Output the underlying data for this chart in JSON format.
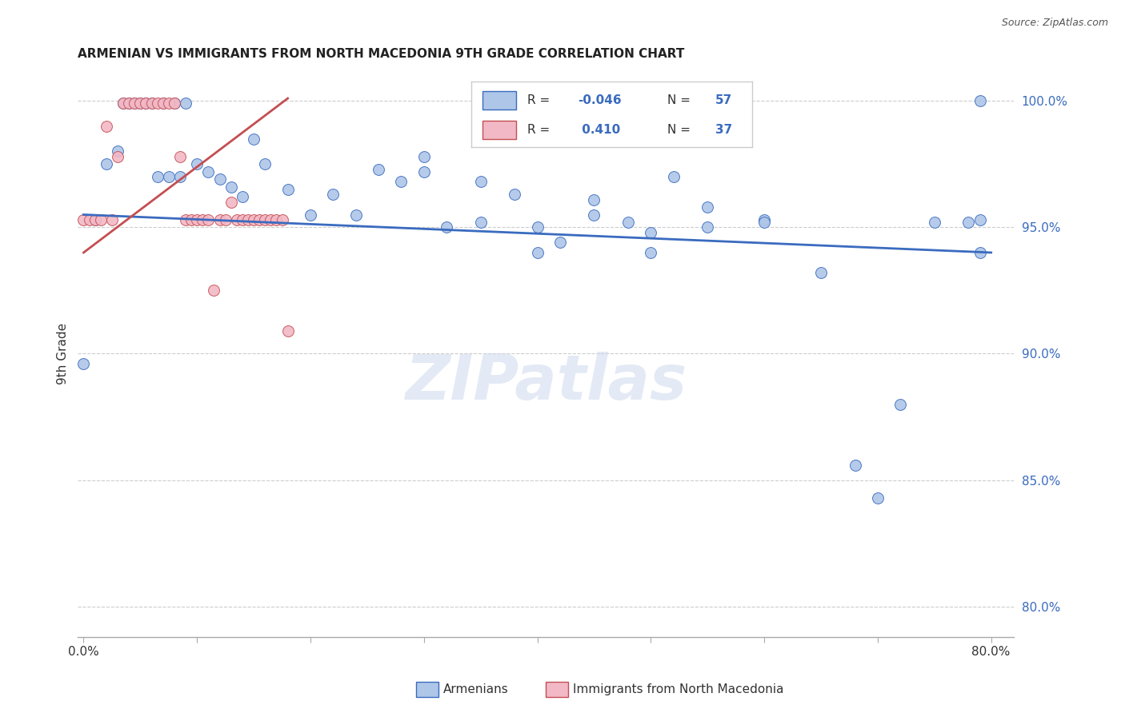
{
  "title": "ARMENIAN VS IMMIGRANTS FROM NORTH MACEDONIA 9TH GRADE CORRELATION CHART",
  "source": "Source: ZipAtlas.com",
  "ylabel": "9th Grade",
  "xlim": [
    -0.005,
    0.82
  ],
  "ylim": [
    0.788,
    1.012
  ],
  "yticks": [
    0.8,
    0.85,
    0.9,
    0.95,
    1.0
  ],
  "ytick_labels": [
    "80.0%",
    "85.0%",
    "90.0%",
    "95.0%",
    "100.0%"
  ],
  "xticks": [
    0.0,
    0.1,
    0.2,
    0.3,
    0.4,
    0.5,
    0.6,
    0.7,
    0.8
  ],
  "xtick_labels": [
    "0.0%",
    "",
    "",
    "",
    "",
    "",
    "",
    "",
    "80.0%"
  ],
  "blue_color": "#aec6e8",
  "pink_color": "#f2b8c6",
  "blue_line_color": "#3a6bbf",
  "pink_line_color": "#c44e52",
  "watermark": "ZIPatlas",
  "blue_scatter_x": [
    0.0,
    0.01,
    0.02,
    0.03,
    0.035,
    0.04,
    0.045,
    0.05,
    0.055,
    0.06,
    0.065,
    0.07,
    0.075,
    0.08,
    0.085,
    0.09,
    0.1,
    0.11,
    0.12,
    0.13,
    0.14,
    0.15,
    0.16,
    0.18,
    0.2,
    0.22,
    0.24,
    0.26,
    0.28,
    0.3,
    0.32,
    0.35,
    0.38,
    0.4,
    0.42,
    0.45,
    0.48,
    0.5,
    0.52,
    0.55,
    0.6,
    0.65,
    0.68,
    0.7,
    0.72,
    0.75,
    0.78,
    0.79,
    0.79,
    0.3,
    0.35,
    0.4,
    0.45,
    0.5,
    0.55,
    0.6,
    0.79
  ],
  "blue_scatter_y": [
    0.896,
    0.953,
    0.975,
    0.98,
    0.999,
    0.999,
    0.999,
    0.999,
    0.999,
    0.999,
    0.97,
    0.999,
    0.97,
    0.999,
    0.97,
    0.999,
    0.975,
    0.972,
    0.969,
    0.966,
    0.962,
    0.985,
    0.975,
    0.965,
    0.955,
    0.963,
    0.955,
    0.973,
    0.968,
    0.972,
    0.95,
    0.968,
    0.963,
    0.95,
    0.944,
    0.955,
    0.952,
    0.948,
    0.97,
    0.95,
    0.953,
    0.932,
    0.856,
    0.843,
    0.88,
    0.952,
    0.952,
    1.0,
    0.953,
    0.978,
    0.952,
    0.94,
    0.961,
    0.94,
    0.958,
    0.952,
    0.94
  ],
  "pink_scatter_x": [
    0.0,
    0.005,
    0.01,
    0.015,
    0.02,
    0.025,
    0.03,
    0.035,
    0.04,
    0.045,
    0.05,
    0.055,
    0.06,
    0.065,
    0.07,
    0.075,
    0.08,
    0.085,
    0.09,
    0.095,
    0.1,
    0.105,
    0.11,
    0.115,
    0.12,
    0.125,
    0.13,
    0.135,
    0.14,
    0.145,
    0.15,
    0.155,
    0.16,
    0.165,
    0.17,
    0.175,
    0.18
  ],
  "pink_scatter_y": [
    0.953,
    0.953,
    0.953,
    0.953,
    0.99,
    0.953,
    0.978,
    0.999,
    0.999,
    0.999,
    0.999,
    0.999,
    0.999,
    0.999,
    0.999,
    0.999,
    0.999,
    0.978,
    0.953,
    0.953,
    0.953,
    0.953,
    0.953,
    0.925,
    0.953,
    0.953,
    0.96,
    0.953,
    0.953,
    0.953,
    0.953,
    0.953,
    0.953,
    0.953,
    0.953,
    0.953,
    0.909
  ],
  "blue_trend_x": [
    0.0,
    0.8
  ],
  "blue_trend_y": [
    0.955,
    0.94
  ],
  "pink_trend_x": [
    0.0,
    0.18
  ],
  "pink_trend_y": [
    0.94,
    1.001
  ]
}
